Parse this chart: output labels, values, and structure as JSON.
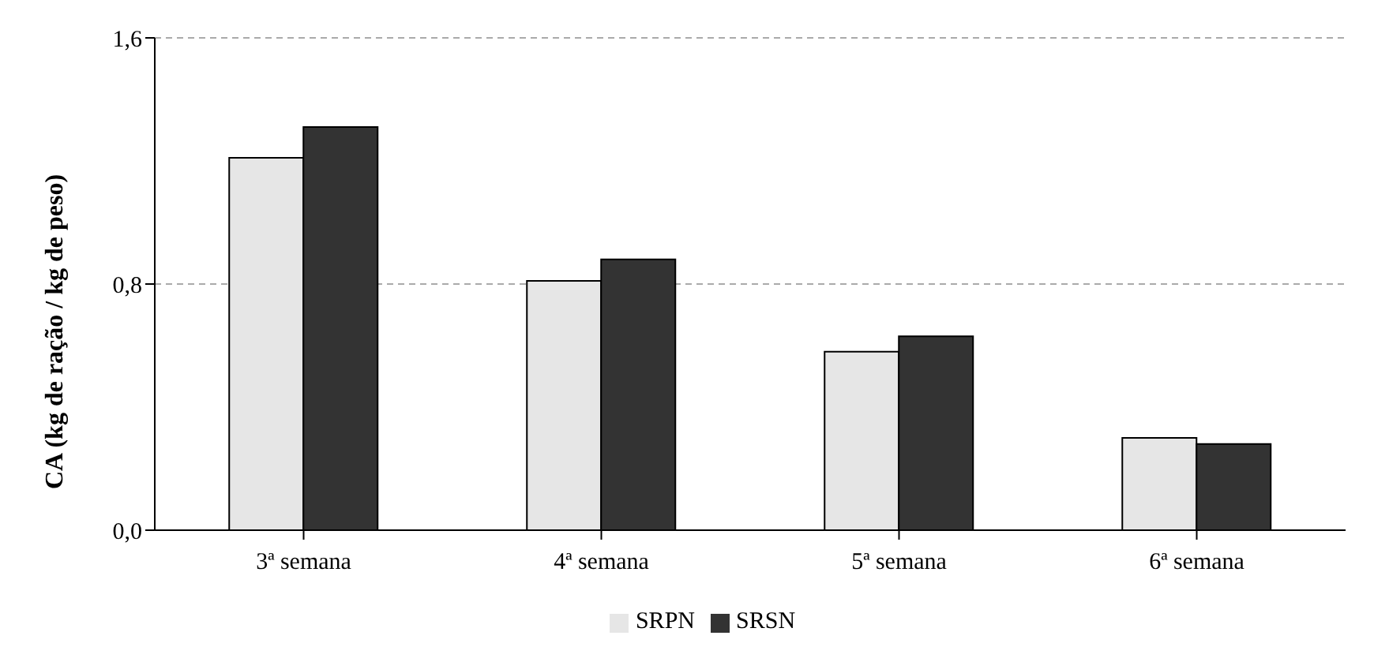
{
  "chart_data": {
    "type": "bar",
    "ylabel": "CA (kg de ração / kg de peso)",
    "categories": [
      "3ª semana",
      "4ª semana",
      "5ª semana",
      "6ª semana"
    ],
    "series": [
      {
        "name": "SRPN",
        "color": "#e6e6e6",
        "values": [
          1.21,
          0.81,
          0.58,
          0.3
        ]
      },
      {
        "name": "SRSN",
        "color": "#333333",
        "values": [
          1.31,
          0.88,
          0.63,
          0.28
        ]
      }
    ],
    "ylim": [
      0,
      1.6
    ],
    "yticks": [
      {
        "value": 0,
        "label": "0,0"
      },
      {
        "value": 0.8,
        "label": "0,8"
      },
      {
        "value": 1.6,
        "label": "1,6"
      }
    ],
    "grid": "y",
    "legend": "bottom"
  }
}
